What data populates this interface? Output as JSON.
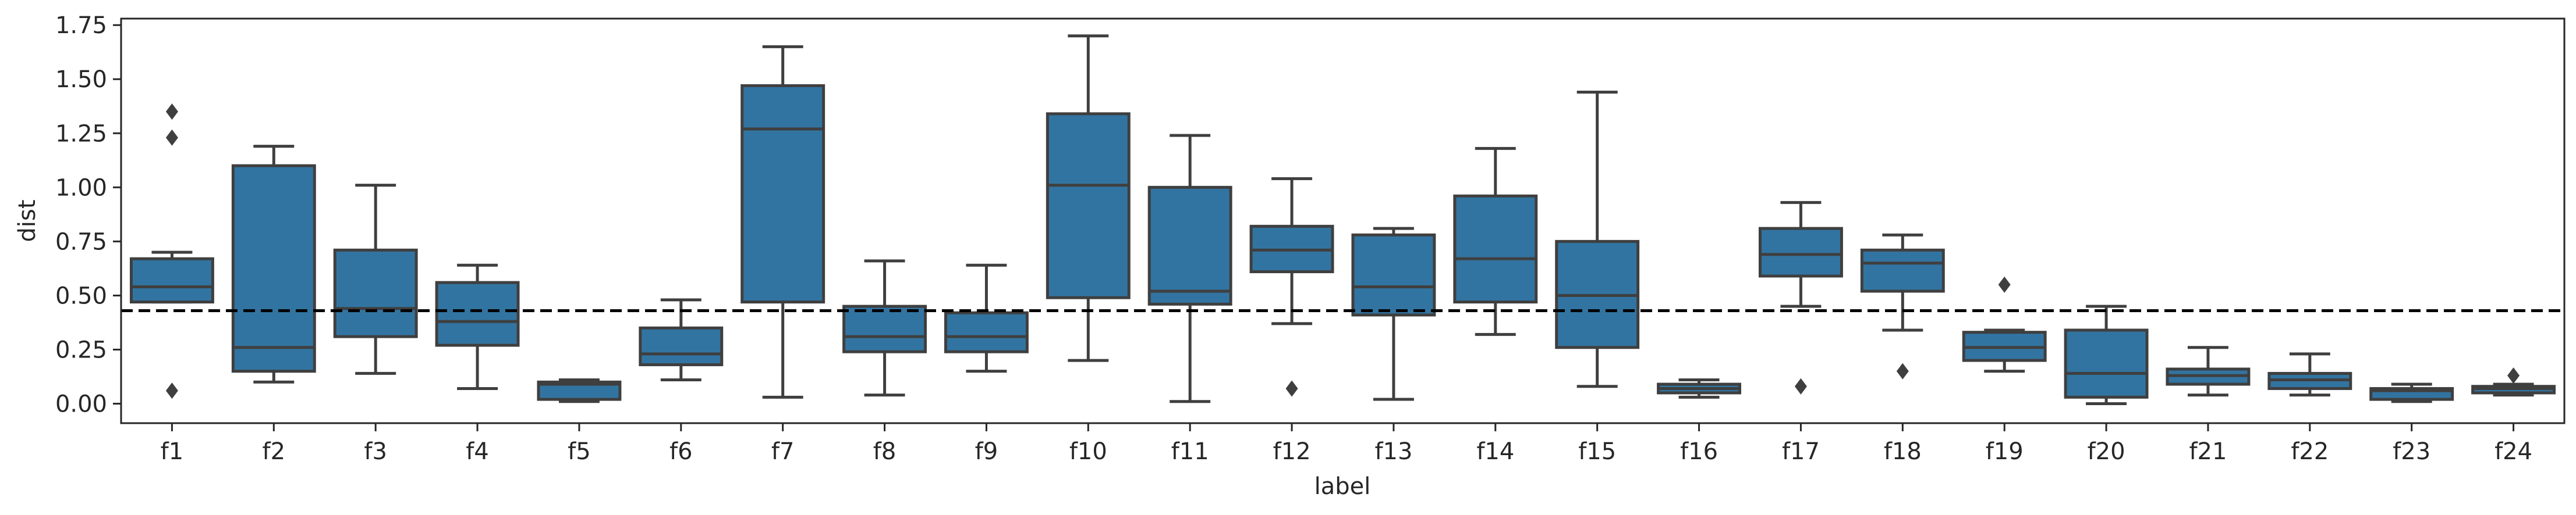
{
  "chart_data": {
    "type": "box",
    "xlabel": "label",
    "ylabel": "dist",
    "ylim": [
      -0.09,
      1.78
    ],
    "yticks": [
      0.0,
      0.25,
      0.5,
      0.75,
      1.0,
      1.25,
      1.5,
      1.75
    ],
    "ytick_labels": [
      "0.00",
      "0.25",
      "0.50",
      "0.75",
      "1.00",
      "1.25",
      "1.50",
      "1.75"
    ],
    "grid": false,
    "legend": "none",
    "box_color": "#3274a1",
    "line_color": "#3f3f3f",
    "reference_line": {
      "y": 0.43,
      "style": "dashed",
      "color": "#000000"
    },
    "categories": [
      "f1",
      "f2",
      "f3",
      "f4",
      "f5",
      "f6",
      "f7",
      "f8",
      "f9",
      "f10",
      "f11",
      "f12",
      "f13",
      "f14",
      "f15",
      "f16",
      "f17",
      "f18",
      "f19",
      "f20",
      "f21",
      "f22",
      "f23",
      "f24"
    ],
    "boxes": [
      {
        "label": "f1",
        "whislo": 0.47,
        "q1": 0.47,
        "med": 0.54,
        "q3": 0.67,
        "whishi": 0.7,
        "fliers": [
          1.35,
          1.23,
          0.06
        ]
      },
      {
        "label": "f2",
        "whislo": 0.1,
        "q1": 0.15,
        "med": 0.26,
        "q3": 1.1,
        "whishi": 1.19,
        "fliers": []
      },
      {
        "label": "f3",
        "whislo": 0.14,
        "q1": 0.31,
        "med": 0.44,
        "q3": 0.71,
        "whishi": 1.01,
        "fliers": []
      },
      {
        "label": "f4",
        "whislo": 0.07,
        "q1": 0.27,
        "med": 0.38,
        "q3": 0.56,
        "whishi": 0.64,
        "fliers": []
      },
      {
        "label": "f5",
        "whislo": 0.01,
        "q1": 0.02,
        "med": 0.09,
        "q3": 0.1,
        "whishi": 0.11,
        "fliers": []
      },
      {
        "label": "f6",
        "whislo": 0.11,
        "q1": 0.18,
        "med": 0.23,
        "q3": 0.35,
        "whishi": 0.48,
        "fliers": []
      },
      {
        "label": "f7",
        "whislo": 0.03,
        "q1": 0.47,
        "med": 1.27,
        "q3": 1.47,
        "whishi": 1.65,
        "fliers": []
      },
      {
        "label": "f8",
        "whislo": 0.04,
        "q1": 0.24,
        "med": 0.31,
        "q3": 0.45,
        "whishi": 0.66,
        "fliers": []
      },
      {
        "label": "f9",
        "whislo": 0.15,
        "q1": 0.24,
        "med": 0.31,
        "q3": 0.42,
        "whishi": 0.64,
        "fliers": []
      },
      {
        "label": "f10",
        "whislo": 0.2,
        "q1": 0.49,
        "med": 1.01,
        "q3": 1.34,
        "whishi": 1.7,
        "fliers": []
      },
      {
        "label": "f11",
        "whislo": 0.01,
        "q1": 0.46,
        "med": 0.52,
        "q3": 1.0,
        "whishi": 1.24,
        "fliers": []
      },
      {
        "label": "f12",
        "whislo": 0.37,
        "q1": 0.61,
        "med": 0.71,
        "q3": 0.82,
        "whishi": 1.04,
        "fliers": [
          0.07
        ]
      },
      {
        "label": "f13",
        "whislo": 0.02,
        "q1": 0.41,
        "med": 0.54,
        "q3": 0.78,
        "whishi": 0.81,
        "fliers": []
      },
      {
        "label": "f14",
        "whislo": 0.32,
        "q1": 0.47,
        "med": 0.67,
        "q3": 0.96,
        "whishi": 1.18,
        "fliers": []
      },
      {
        "label": "f15",
        "whislo": 0.08,
        "q1": 0.26,
        "med": 0.5,
        "q3": 0.75,
        "whishi": 1.44,
        "fliers": []
      },
      {
        "label": "f16",
        "whislo": 0.03,
        "q1": 0.05,
        "med": 0.07,
        "q3": 0.09,
        "whishi": 0.11,
        "fliers": []
      },
      {
        "label": "f17",
        "whislo": 0.45,
        "q1": 0.59,
        "med": 0.69,
        "q3": 0.81,
        "whishi": 0.93,
        "fliers": [
          0.08
        ]
      },
      {
        "label": "f18",
        "whislo": 0.34,
        "q1": 0.52,
        "med": 0.65,
        "q3": 0.71,
        "whishi": 0.78,
        "fliers": [
          0.15
        ]
      },
      {
        "label": "f19",
        "whislo": 0.15,
        "q1": 0.2,
        "med": 0.26,
        "q3": 0.33,
        "whishi": 0.34,
        "fliers": [
          0.55
        ]
      },
      {
        "label": "f20",
        "whislo": 0.0,
        "q1": 0.03,
        "med": 0.14,
        "q3": 0.34,
        "whishi": 0.45,
        "fliers": []
      },
      {
        "label": "f21",
        "whislo": 0.04,
        "q1": 0.09,
        "med": 0.13,
        "q3": 0.16,
        "whishi": 0.26,
        "fliers": []
      },
      {
        "label": "f22",
        "whislo": 0.04,
        "q1": 0.07,
        "med": 0.11,
        "q3": 0.14,
        "whishi": 0.23,
        "fliers": []
      },
      {
        "label": "f23",
        "whislo": 0.01,
        "q1": 0.02,
        "med": 0.06,
        "q3": 0.07,
        "whishi": 0.09,
        "fliers": []
      },
      {
        "label": "f24",
        "whislo": 0.04,
        "q1": 0.05,
        "med": 0.07,
        "q3": 0.08,
        "whishi": 0.09,
        "fliers": [
          0.13
        ]
      }
    ]
  }
}
